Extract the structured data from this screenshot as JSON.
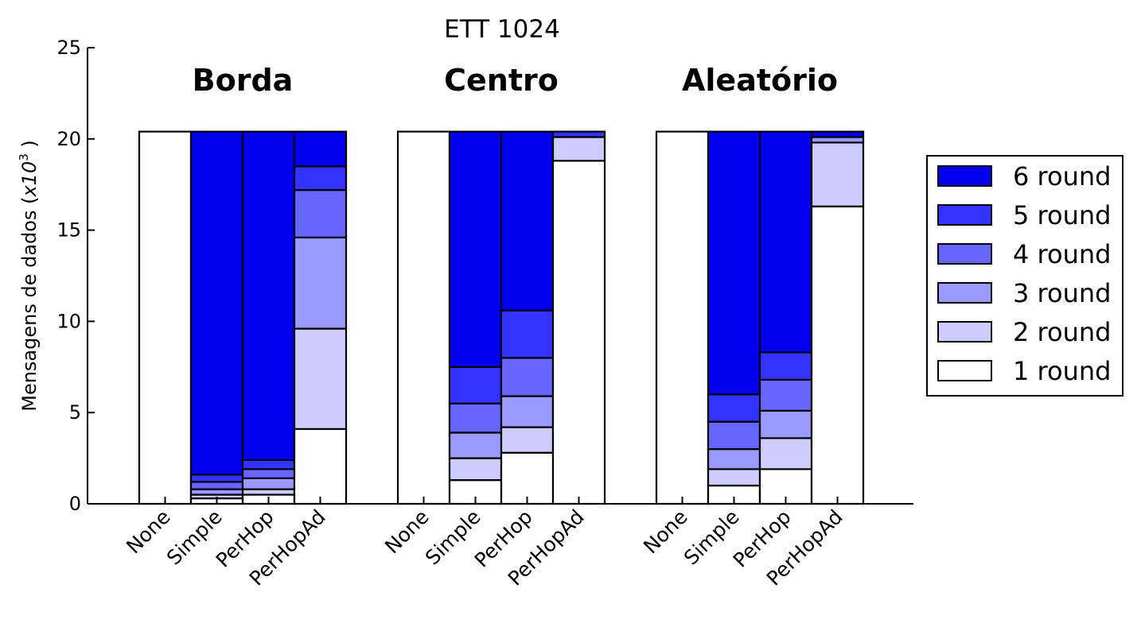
{
  "chart_data": {
    "type": "bar",
    "stacked": true,
    "title": "ETT 1024",
    "ylabel": "Mensagens de dados",
    "ylabel_unit_base": "x10",
    "ylabel_unit_exp": "3",
    "ylim": [
      0,
      25
    ],
    "yticks": [
      "0",
      "5",
      "10",
      "15",
      "20",
      "25"
    ],
    "grid": false,
    "legend_position": "right",
    "groups": [
      {
        "name": "Borda",
        "categories": [
          "None",
          "Simple",
          "PerHop",
          "PerHopAd"
        ]
      },
      {
        "name": "Centro",
        "categories": [
          "None",
          "Simple",
          "PerHop",
          "PerHopAd"
        ]
      },
      {
        "name": "Aleatório",
        "categories": [
          "None",
          "Simple",
          "PerHop",
          "PerHopAd"
        ]
      }
    ],
    "series": [
      {
        "name": "1 round",
        "color": "#ffffff",
        "values": [
          [
            20.4,
            0.3,
            0.5,
            4.1
          ],
          [
            20.4,
            1.3,
            2.8,
            18.8
          ],
          [
            20.4,
            1.0,
            1.9,
            16.3
          ]
        ]
      },
      {
        "name": "2 round",
        "color": "#ccccff",
        "values": [
          [
            0,
            0.2,
            0.3,
            5.5
          ],
          [
            0,
            1.2,
            1.4,
            1.3
          ],
          [
            0,
            0.9,
            1.7,
            3.5
          ]
        ]
      },
      {
        "name": "3 round",
        "color": "#9999ff",
        "values": [
          [
            0,
            0.3,
            0.6,
            5.0
          ],
          [
            0,
            1.4,
            1.7,
            0
          ],
          [
            0,
            1.1,
            1.5,
            0.3
          ]
        ]
      },
      {
        "name": "4 round",
        "color": "#6666ff",
        "values": [
          [
            0,
            0.4,
            0.5,
            2.6
          ],
          [
            0,
            1.6,
            2.1,
            0
          ],
          [
            0,
            1.5,
            1.7,
            0
          ]
        ]
      },
      {
        "name": "5 round",
        "color": "#3333ff",
        "values": [
          [
            0,
            0.4,
            0.5,
            1.3
          ],
          [
            0,
            2.0,
            2.6,
            0.3
          ],
          [
            0,
            1.5,
            1.5,
            0
          ]
        ]
      },
      {
        "name": "6 round",
        "color": "#0000ee",
        "values": [
          [
            0,
            18.8,
            18.0,
            1.9
          ],
          [
            0,
            12.9,
            9.8,
            0
          ],
          [
            0,
            14.4,
            12.1,
            0.3
          ]
        ]
      }
    ]
  }
}
